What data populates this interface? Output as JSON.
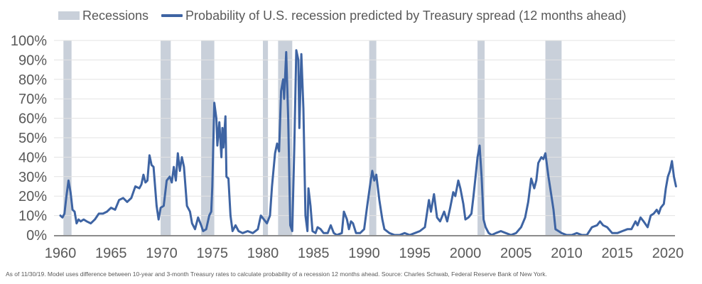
{
  "legend": {
    "recessions_label": "Recessions",
    "series_label": "Probability of U.S. recession predicted by Treasury spread (12 months ahead)"
  },
  "footnote": "As of 11/30/19. Model uses difference between 10-year and 3-month Treasury rates to calculate probability of a recession 12 months ahead. Source: Charles Schwab, Federal Reserve Bank of New York.",
  "colors": {
    "series": "#3e64a3",
    "recession": "#c9d0da",
    "grid": "#e3e3e3",
    "axis": "#8c8c8c",
    "text": "#595959"
  },
  "chart_data": {
    "type": "line",
    "title": "",
    "xlabel": "",
    "ylabel": "",
    "xlim": [
      1960,
      2020.9
    ],
    "ylim": [
      0,
      100
    ],
    "y_unit": "%",
    "grid": true,
    "legend_position": "top",
    "yticks": [
      0,
      10,
      20,
      30,
      40,
      50,
      60,
      70,
      80,
      90,
      100
    ],
    "ytick_labels": [
      "0%",
      "10%",
      "20%",
      "30%",
      "40%",
      "50%",
      "60%",
      "70%",
      "80%",
      "90%",
      "100%"
    ],
    "xticks": [
      1960,
      1965,
      1970,
      1975,
      1980,
      1985,
      1990,
      1995,
      2000,
      2005,
      2010,
      2015,
      2020
    ],
    "xtick_labels": [
      "1960",
      "1965",
      "1970",
      "1975",
      "1980",
      "1985",
      "1990",
      "1995",
      "2000",
      "2005",
      "2010",
      "2015",
      "2020"
    ],
    "recessions": [
      [
        1960.3,
        1961.1
      ],
      [
        1969.9,
        1970.9
      ],
      [
        1973.9,
        1975.2
      ],
      [
        1980.0,
        1980.5
      ],
      [
        1981.5,
        1982.9
      ],
      [
        1990.5,
        1991.2
      ],
      [
        2001.2,
        2001.9
      ],
      [
        2007.9,
        2009.5
      ]
    ],
    "series": [
      {
        "name": "Probability of U.S. recession predicted by Treasury spread (12 months ahead)",
        "points": [
          [
            1960.0,
            10
          ],
          [
            1960.2,
            9
          ],
          [
            1960.4,
            11
          ],
          [
            1960.6,
            20
          ],
          [
            1960.8,
            28
          ],
          [
            1961.0,
            22
          ],
          [
            1961.2,
            13
          ],
          [
            1961.4,
            12
          ],
          [
            1961.6,
            6
          ],
          [
            1961.8,
            8
          ],
          [
            1962.0,
            7
          ],
          [
            1962.3,
            8
          ],
          [
            1962.6,
            7
          ],
          [
            1963.0,
            6
          ],
          [
            1963.4,
            8
          ],
          [
            1963.8,
            11
          ],
          [
            1964.2,
            11
          ],
          [
            1964.6,
            12
          ],
          [
            1965.0,
            14
          ],
          [
            1965.4,
            13
          ],
          [
            1965.8,
            18
          ],
          [
            1966.2,
            19
          ],
          [
            1966.6,
            17
          ],
          [
            1967.0,
            19
          ],
          [
            1967.4,
            25
          ],
          [
            1967.8,
            24
          ],
          [
            1968.0,
            26
          ],
          [
            1968.2,
            31
          ],
          [
            1968.4,
            27
          ],
          [
            1968.6,
            28
          ],
          [
            1968.8,
            41
          ],
          [
            1969.0,
            36
          ],
          [
            1969.2,
            35
          ],
          [
            1969.5,
            15
          ],
          [
            1969.7,
            8
          ],
          [
            1969.9,
            14
          ],
          [
            1970.2,
            15
          ],
          [
            1970.5,
            28
          ],
          [
            1970.8,
            30
          ],
          [
            1971.0,
            27
          ],
          [
            1971.2,
            35
          ],
          [
            1971.4,
            28
          ],
          [
            1971.6,
            42
          ],
          [
            1971.8,
            33
          ],
          [
            1972.0,
            40
          ],
          [
            1972.2,
            35
          ],
          [
            1972.5,
            15
          ],
          [
            1972.8,
            12
          ],
          [
            1973.0,
            6
          ],
          [
            1973.3,
            3
          ],
          [
            1973.6,
            9
          ],
          [
            1973.9,
            5
          ],
          [
            1974.1,
            2
          ],
          [
            1974.4,
            3
          ],
          [
            1974.7,
            10
          ],
          [
            1974.9,
            12
          ],
          [
            1975.0,
            25
          ],
          [
            1975.2,
            68
          ],
          [
            1975.4,
            60
          ],
          [
            1975.5,
            46
          ],
          [
            1975.7,
            58
          ],
          [
            1975.9,
            40
          ],
          [
            1976.0,
            55
          ],
          [
            1976.1,
            45
          ],
          [
            1976.3,
            61
          ],
          [
            1976.4,
            30
          ],
          [
            1976.6,
            29
          ],
          [
            1976.8,
            10
          ],
          [
            1977.0,
            2
          ],
          [
            1977.3,
            5
          ],
          [
            1977.6,
            2
          ],
          [
            1978.0,
            1
          ],
          [
            1978.5,
            2
          ],
          [
            1979.0,
            1
          ],
          [
            1979.5,
            3
          ],
          [
            1979.8,
            10
          ],
          [
            1980.1,
            8
          ],
          [
            1980.4,
            6
          ],
          [
            1980.7,
            10
          ],
          [
            1980.9,
            25
          ],
          [
            1981.2,
            42
          ],
          [
            1981.4,
            47
          ],
          [
            1981.6,
            43
          ],
          [
            1981.8,
            74
          ],
          [
            1982.0,
            80
          ],
          [
            1982.1,
            70
          ],
          [
            1982.3,
            94
          ],
          [
            1982.5,
            60
          ],
          [
            1982.7,
            5
          ],
          [
            1982.9,
            2
          ],
          [
            1983.1,
            45
          ],
          [
            1983.3,
            95
          ],
          [
            1983.5,
            90
          ],
          [
            1983.6,
            55
          ],
          [
            1983.8,
            93
          ],
          [
            1984.0,
            65
          ],
          [
            1984.2,
            10
          ],
          [
            1984.4,
            2
          ],
          [
            1984.5,
            24
          ],
          [
            1984.7,
            15
          ],
          [
            1984.9,
            2
          ],
          [
            1985.2,
            1
          ],
          [
            1985.4,
            4
          ],
          [
            1985.7,
            3
          ],
          [
            1986.0,
            1
          ],
          [
            1986.4,
            1
          ],
          [
            1986.7,
            5
          ],
          [
            1987.0,
            1
          ],
          [
            1987.3,
            0
          ],
          [
            1987.8,
            1
          ],
          [
            1988.0,
            12
          ],
          [
            1988.3,
            8
          ],
          [
            1988.5,
            3
          ],
          [
            1988.7,
            7
          ],
          [
            1988.9,
            6
          ],
          [
            1989.2,
            1
          ],
          [
            1989.6,
            1
          ],
          [
            1990.0,
            3
          ],
          [
            1990.3,
            15
          ],
          [
            1990.6,
            26
          ],
          [
            1990.8,
            33
          ],
          [
            1991.0,
            28
          ],
          [
            1991.2,
            31
          ],
          [
            1991.5,
            18
          ],
          [
            1991.8,
            8
          ],
          [
            1992.0,
            3
          ],
          [
            1992.5,
            1
          ],
          [
            1993.0,
            0
          ],
          [
            1993.5,
            0
          ],
          [
            1994.0,
            1
          ],
          [
            1994.5,
            0
          ],
          [
            1995.0,
            1
          ],
          [
            1995.5,
            2
          ],
          [
            1996.0,
            4
          ],
          [
            1996.4,
            18
          ],
          [
            1996.6,
            12
          ],
          [
            1996.9,
            21
          ],
          [
            1997.2,
            9
          ],
          [
            1997.5,
            7
          ],
          [
            1997.9,
            12
          ],
          [
            1998.2,
            7
          ],
          [
            1998.5,
            14
          ],
          [
            1998.8,
            22
          ],
          [
            1999.0,
            20
          ],
          [
            1999.3,
            28
          ],
          [
            1999.5,
            24
          ],
          [
            1999.8,
            16
          ],
          [
            2000.0,
            8
          ],
          [
            2000.3,
            9
          ],
          [
            2000.6,
            11
          ],
          [
            2000.8,
            20
          ],
          [
            2001.0,
            30
          ],
          [
            2001.2,
            40
          ],
          [
            2001.4,
            46
          ],
          [
            2001.6,
            30
          ],
          [
            2001.8,
            8
          ],
          [
            2002.0,
            4
          ],
          [
            2002.3,
            1
          ],
          [
            2002.6,
            0
          ],
          [
            2003.0,
            1
          ],
          [
            2003.5,
            2
          ],
          [
            2004.0,
            1
          ],
          [
            2004.5,
            0
          ],
          [
            2005.0,
            1
          ],
          [
            2005.5,
            4
          ],
          [
            2005.9,
            9
          ],
          [
            2006.2,
            17
          ],
          [
            2006.5,
            29
          ],
          [
            2006.8,
            24
          ],
          [
            2007.0,
            28
          ],
          [
            2007.2,
            37
          ],
          [
            2007.5,
            40
          ],
          [
            2007.7,
            39
          ],
          [
            2007.9,
            42
          ],
          [
            2008.2,
            30
          ],
          [
            2008.5,
            20
          ],
          [
            2008.7,
            13
          ],
          [
            2008.9,
            3
          ],
          [
            2009.2,
            2
          ],
          [
            2009.5,
            1
          ],
          [
            2010.0,
            0
          ],
          [
            2010.5,
            0
          ],
          [
            2011.0,
            1
          ],
          [
            2011.5,
            0
          ],
          [
            2012.0,
            0
          ],
          [
            2012.5,
            4
          ],
          [
            2013.0,
            5
          ],
          [
            2013.3,
            7
          ],
          [
            2013.6,
            5
          ],
          [
            2014.0,
            4
          ],
          [
            2014.5,
            1
          ],
          [
            2015.0,
            1
          ],
          [
            2015.5,
            2
          ],
          [
            2016.0,
            3
          ],
          [
            2016.4,
            3
          ],
          [
            2016.8,
            7
          ],
          [
            2017.0,
            5
          ],
          [
            2017.3,
            9
          ],
          [
            2017.6,
            7
          ],
          [
            2018.0,
            4
          ],
          [
            2018.3,
            10
          ],
          [
            2018.6,
            11
          ],
          [
            2018.9,
            13
          ],
          [
            2019.1,
            11
          ],
          [
            2019.3,
            14
          ],
          [
            2019.6,
            16
          ],
          [
            2019.8,
            24
          ],
          [
            2020.0,
            30
          ],
          [
            2020.2,
            33
          ],
          [
            2020.4,
            38
          ],
          [
            2020.6,
            30
          ],
          [
            2020.8,
            25
          ]
        ]
      }
    ]
  }
}
